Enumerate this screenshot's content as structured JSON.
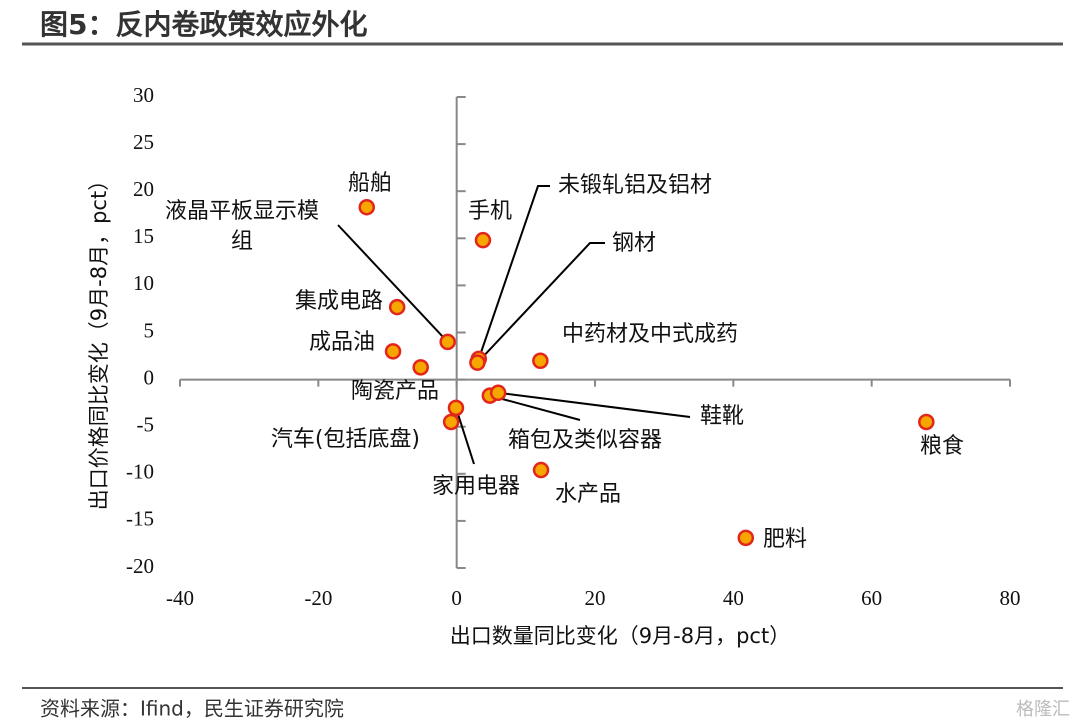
{
  "chart_data": {
    "type": "scatter",
    "title": "图5：反内卷政策效应外化",
    "xlabel": "出口数量同比变化（9月-8月，pct）",
    "ylabel": "出口价格同比变化（9月-8月，pct）",
    "source": "资料来源：Ifind，民生证券研究院",
    "watermark": "格隆汇",
    "labels": [
      "船舶",
      "液晶平板显示模组",
      "手机",
      "集成电路",
      "成品油",
      "陶瓷产品",
      "未锻轧铝及铝材",
      "钢材",
      "中药材及中式成药",
      "汽车(包括底盘)",
      "家用电器",
      "箱包及类似容器",
      "鞋靴",
      "水产品",
      "肥料",
      "粮食"
    ],
    "x": [
      -13.0,
      -1.3,
      3.8,
      -8.6,
      -9.2,
      -5.2,
      3.2,
      3.0,
      12.1,
      -0.8,
      -0.1,
      4.8,
      6.0,
      12.2,
      41.8,
      67.9
    ],
    "values": [
      18.3,
      4.0,
      14.8,
      7.7,
      3.0,
      1.3,
      2.2,
      1.8,
      2.0,
      -4.5,
      -3.0,
      -1.7,
      -1.4,
      -9.6,
      -16.8,
      -4.5
    ],
    "color": "#f7a600",
    "edgecolor": "#e3261b",
    "xlim": [
      -40,
      80
    ],
    "xticks": [
      -40,
      -20,
      0,
      20,
      40,
      60,
      80
    ],
    "ylim": [
      -20,
      30
    ],
    "yticks": [
      -20,
      -15,
      -10,
      -5,
      0,
      5,
      10,
      15,
      20,
      25,
      30
    ]
  }
}
